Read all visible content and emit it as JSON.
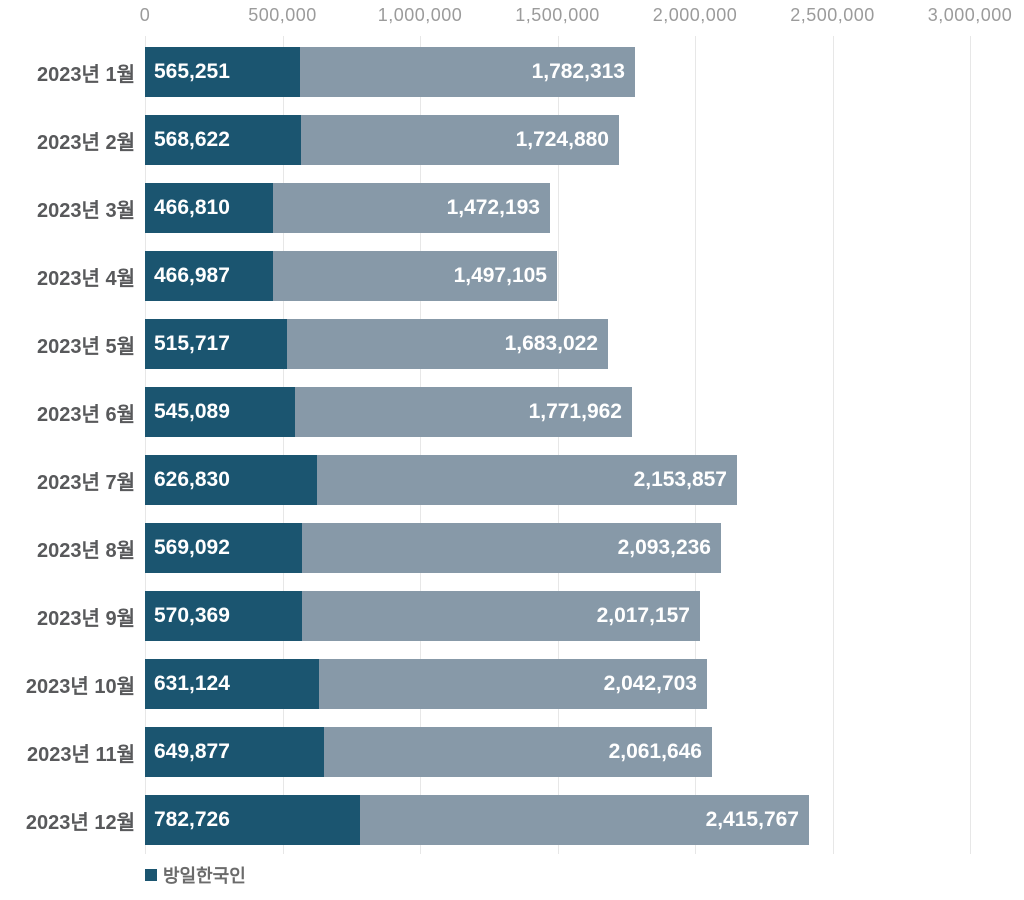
{
  "chart_data": {
    "type": "bar",
    "orientation": "horizontal",
    "title": "",
    "xlabel": "",
    "ylabel": "",
    "xlim": [
      0,
      3000000
    ],
    "x_ticks": [
      "0",
      "500,000",
      "1,000,000",
      "1,500,000",
      "2,000,000",
      "2,500,000",
      "3,000,000"
    ],
    "x_tick_values": [
      0,
      500000,
      1000000,
      1500000,
      2000000,
      2500000,
      3000000
    ],
    "grid": true,
    "legend_position": "bottom-left",
    "categories": [
      "2023년 1월",
      "2023년 2월",
      "2023년 3월",
      "2023년 4월",
      "2023년 5월",
      "2023년 6월",
      "2023년 7월",
      "2023년 8월",
      "2023년 9월",
      "2023년 10월",
      "2023년 11월",
      "2023년 12월"
    ],
    "series": [
      {
        "name": "방일한국인",
        "color": "#1b5570",
        "values": [
          565251,
          568622,
          466810,
          466987,
          515717,
          545089,
          626830,
          569092,
          570369,
          631124,
          649877,
          782726
        ],
        "labels": [
          "565,251",
          "568,622",
          "466,810",
          "466,987",
          "515,717",
          "545,089",
          "626,830",
          "569,092",
          "570,369",
          "631,124",
          "649,877",
          "782,726"
        ]
      },
      {
        "name": "",
        "color": "#8799a8",
        "values": [
          1782313,
          1724880,
          1472193,
          1497105,
          1683022,
          1771962,
          2153857,
          2093236,
          2017157,
          2042703,
          2061646,
          2415767
        ],
        "labels": [
          "1,782,313",
          "1,724,880",
          "1,472,193",
          "1,497,105",
          "1,683,022",
          "1,771,962",
          "2,153,857",
          "2,093,236",
          "2,017,157",
          "2,042,703",
          "2,061,646",
          "2,415,767"
        ]
      }
    ]
  },
  "legend": {
    "label": "방일한국인"
  },
  "colors": {
    "bar_dark": "#1b5570",
    "bar_light": "#8799a8",
    "grid": "#e7e7e7",
    "axis_text": "#9b9b9b",
    "category_text": "#58595b",
    "value_text": "#ffffff",
    "legend_text": "#6b6b6b"
  }
}
